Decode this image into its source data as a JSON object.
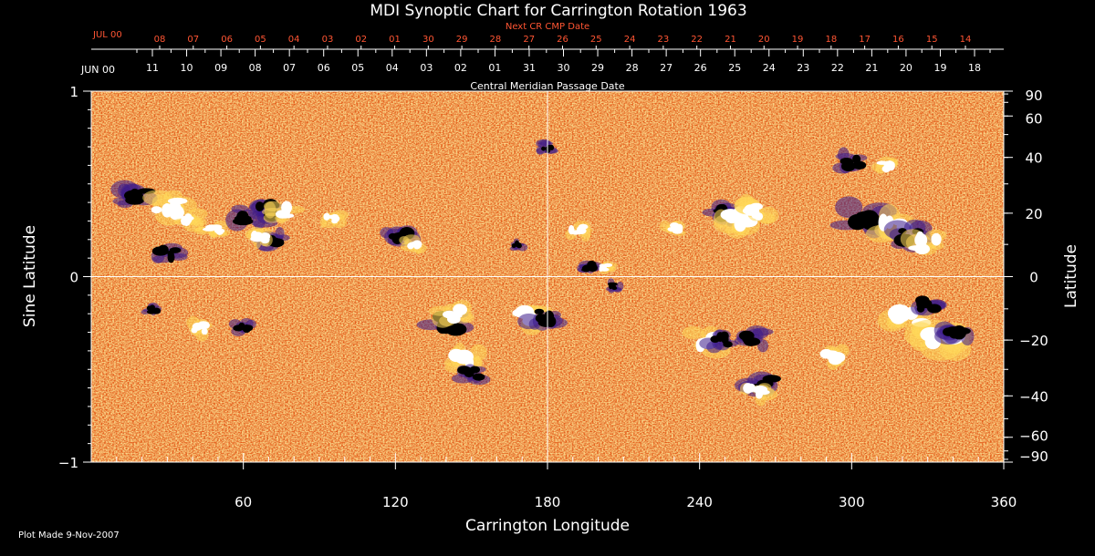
{
  "chart_data": {
    "type": "heatmap",
    "title": "MDI Synoptic Chart for Carrington Rotation 1963",
    "xlabel": "Carrington Longitude",
    "ylabel_left": "Sine Latitude",
    "ylabel_right": "Latitude",
    "xlim": [
      0,
      360
    ],
    "ylim": [
      -1,
      1
    ],
    "x_ticks": [
      "60",
      "120",
      "180",
      "240",
      "300",
      "360"
    ],
    "x_tick_values": [
      60,
      120,
      180,
      240,
      300,
      360
    ],
    "y_ticks_left": [
      "1",
      "0",
      "−1"
    ],
    "y_tick_values_left": [
      1,
      0,
      -1
    ],
    "y_ticks_right": [
      "90",
      "60",
      "40",
      "20",
      "0",
      "−20",
      "−40",
      "−60",
      "−90"
    ],
    "y_tick_degrees_right": [
      90,
      60,
      40,
      20,
      0,
      -20,
      -40,
      -60,
      -90
    ],
    "top_axis_label": "Central Meridian Passage Date",
    "top_red_axis_label": "Next CR CMP Date",
    "top_month_label": "JUN 00",
    "top_red_month_label": "JUL 00",
    "top_dates": [
      "11",
      "10",
      "09",
      "08",
      "07",
      "06",
      "05",
      "04",
      "03",
      "02",
      "01",
      "31",
      "30",
      "29",
      "28",
      "27",
      "26",
      "25",
      "24",
      "23",
      "22",
      "21",
      "20",
      "19",
      "18"
    ],
    "top_red_dates": [
      "08",
      "07",
      "06",
      "05",
      "04",
      "03",
      "02",
      "01",
      "30",
      "29",
      "28",
      "27",
      "26",
      "25",
      "24",
      "23",
      "22",
      "21",
      "20",
      "19",
      "18",
      "17",
      "16",
      "15",
      "14"
    ],
    "footer": "Plot Made  9-Nov-2007",
    "active_regions": [
      {
        "lon": 18,
        "sinlat": 0.43,
        "polarity": "negative",
        "size": 1.0
      },
      {
        "lon": 30,
        "sinlat": 0.38,
        "polarity": "positive",
        "size": 1.2
      },
      {
        "lon": 38,
        "sinlat": 0.3,
        "polarity": "positive",
        "size": 0.8
      },
      {
        "lon": 30,
        "sinlat": 0.12,
        "polarity": "negative",
        "size": 0.8
      },
      {
        "lon": 48,
        "sinlat": 0.26,
        "polarity": "positive",
        "size": 0.7
      },
      {
        "lon": 63,
        "sinlat": 0.33,
        "polarity": "negative",
        "size": 1.1
      },
      {
        "lon": 69,
        "sinlat": 0.36,
        "polarity": "negative",
        "size": 0.9
      },
      {
        "lon": 76,
        "sinlat": 0.35,
        "polarity": "positive",
        "size": 0.9
      },
      {
        "lon": 72,
        "sinlat": 0.2,
        "polarity": "negative",
        "size": 0.8
      },
      {
        "lon": 66,
        "sinlat": 0.22,
        "polarity": "positive",
        "size": 0.7
      },
      {
        "lon": 95,
        "sinlat": 0.31,
        "polarity": "positive",
        "size": 0.6
      },
      {
        "lon": 122,
        "sinlat": 0.22,
        "polarity": "negative",
        "size": 0.9
      },
      {
        "lon": 127,
        "sinlat": 0.17,
        "polarity": "positive",
        "size": 0.6
      },
      {
        "lon": 168,
        "sinlat": 0.17,
        "polarity": "negative",
        "size": 0.4
      },
      {
        "lon": 180,
        "sinlat": 0.7,
        "polarity": "negative",
        "size": 0.5
      },
      {
        "lon": 192,
        "sinlat": 0.25,
        "polarity": "positive",
        "size": 0.7
      },
      {
        "lon": 196,
        "sinlat": 0.05,
        "polarity": "negative",
        "size": 0.6
      },
      {
        "lon": 203,
        "sinlat": 0.05,
        "polarity": "positive",
        "size": 0.5
      },
      {
        "lon": 249,
        "sinlat": 0.35,
        "polarity": "negative",
        "size": 0.9
      },
      {
        "lon": 255,
        "sinlat": 0.31,
        "polarity": "positive",
        "size": 1.1
      },
      {
        "lon": 263,
        "sinlat": 0.35,
        "polarity": "positive",
        "size": 1.0
      },
      {
        "lon": 230,
        "sinlat": 0.26,
        "polarity": "positive",
        "size": 0.6
      },
      {
        "lon": 305,
        "sinlat": 0.32,
        "polarity": "negative",
        "size": 1.2
      },
      {
        "lon": 317,
        "sinlat": 0.28,
        "polarity": "positive",
        "size": 1.2
      },
      {
        "lon": 324,
        "sinlat": 0.22,
        "polarity": "negative",
        "size": 1.0
      },
      {
        "lon": 330,
        "sinlat": 0.18,
        "polarity": "positive",
        "size": 1.0
      },
      {
        "lon": 300,
        "sinlat": 0.62,
        "polarity": "negative",
        "size": 0.8
      },
      {
        "lon": 314,
        "sinlat": 0.6,
        "polarity": "positive",
        "size": 0.6
      },
      {
        "lon": 24,
        "sinlat": -0.18,
        "polarity": "negative",
        "size": 0.5
      },
      {
        "lon": 42,
        "sinlat": -0.28,
        "polarity": "positive",
        "size": 0.7
      },
      {
        "lon": 60,
        "sinlat": -0.28,
        "polarity": "negative",
        "size": 0.6
      },
      {
        "lon": 140,
        "sinlat": -0.25,
        "polarity": "negative",
        "size": 1.1
      },
      {
        "lon": 143,
        "sinlat": -0.2,
        "polarity": "positive",
        "size": 0.9
      },
      {
        "lon": 147,
        "sinlat": -0.45,
        "polarity": "positive",
        "size": 1.0
      },
      {
        "lon": 150,
        "sinlat": -0.52,
        "polarity": "negative",
        "size": 0.8
      },
      {
        "lon": 172,
        "sinlat": -0.22,
        "polarity": "positive",
        "size": 1.0
      },
      {
        "lon": 178,
        "sinlat": -0.22,
        "polarity": "negative",
        "size": 1.0
      },
      {
        "lon": 206,
        "sinlat": -0.05,
        "polarity": "negative",
        "size": 0.5
      },
      {
        "lon": 243,
        "sinlat": -0.35,
        "polarity": "positive",
        "size": 1.0
      },
      {
        "lon": 248,
        "sinlat": -0.34,
        "polarity": "negative",
        "size": 0.8
      },
      {
        "lon": 261,
        "sinlat": -0.33,
        "polarity": "negative",
        "size": 0.9
      },
      {
        "lon": 265,
        "sinlat": -0.58,
        "polarity": "negative",
        "size": 1.0
      },
      {
        "lon": 262,
        "sinlat": -0.62,
        "polarity": "positive",
        "size": 0.8
      },
      {
        "lon": 293,
        "sinlat": -0.43,
        "polarity": "positive",
        "size": 0.8
      },
      {
        "lon": 323,
        "sinlat": -0.22,
        "polarity": "positive",
        "size": 1.3
      },
      {
        "lon": 335,
        "sinlat": -0.33,
        "polarity": "positive",
        "size": 1.4
      },
      {
        "lon": 342,
        "sinlat": -0.32,
        "polarity": "negative",
        "size": 1.0
      },
      {
        "lon": 330,
        "sinlat": -0.15,
        "polarity": "negative",
        "size": 0.8
      }
    ],
    "grid": {
      "equator": true,
      "meridian": 180
    },
    "colors": {
      "background": "#000000",
      "field_base": "#e85a16",
      "field_light": "#ffa036",
      "field_dark": "#8e1d0a",
      "positive": "#ffffff",
      "positive_halo": "#ffd95a",
      "negative": "#000000",
      "negative_halo": "#3a1a8a",
      "axis": "#ffffff",
      "red_axis": "#ff5533"
    }
  }
}
